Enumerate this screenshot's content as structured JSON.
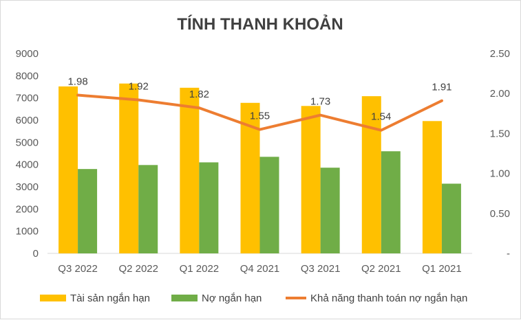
{
  "chart_data": {
    "type": "bar",
    "title": "TÍNH THANH KHOẢN",
    "categories": [
      "Q3 2022",
      "Q2 2022",
      "Q1 2022",
      "Q4 2021",
      "Q3 2021",
      "Q2 2021",
      "Q1 2021"
    ],
    "series": [
      {
        "name": "Tài sản ngắn hạn",
        "type": "bar",
        "axis": "left",
        "color": "#FFC000",
        "values": [
          7520,
          7650,
          7460,
          6780,
          6640,
          7080,
          5960
        ]
      },
      {
        "name": "Nợ ngắn hạn",
        "type": "bar",
        "axis": "left",
        "color": "#70AD47",
        "values": [
          3800,
          3980,
          4100,
          4350,
          3860,
          4600,
          3140
        ]
      },
      {
        "name": "Khả năng thanh toán nợ ngắn hạn",
        "type": "line",
        "axis": "right",
        "color": "#ED7D31",
        "values": [
          1.98,
          1.92,
          1.82,
          1.55,
          1.73,
          1.54,
          1.91
        ],
        "labels": [
          "1.98",
          "1.92",
          "1.82",
          "1.55",
          "1.73",
          "1.54",
          "1.91"
        ]
      }
    ],
    "y_left": {
      "ylim": [
        0,
        9000
      ],
      "ticks": [
        "0",
        "1000",
        "2000",
        "3000",
        "4000",
        "5000",
        "6000",
        "7000",
        "8000",
        "9000"
      ]
    },
    "y_right": {
      "ylim": [
        0,
        2.5
      ],
      "ticks": [
        "-",
        "0.50",
        "1.00",
        "1.50",
        "2.00",
        "2.50"
      ]
    },
    "grid": false,
    "legend_position": "bottom"
  }
}
